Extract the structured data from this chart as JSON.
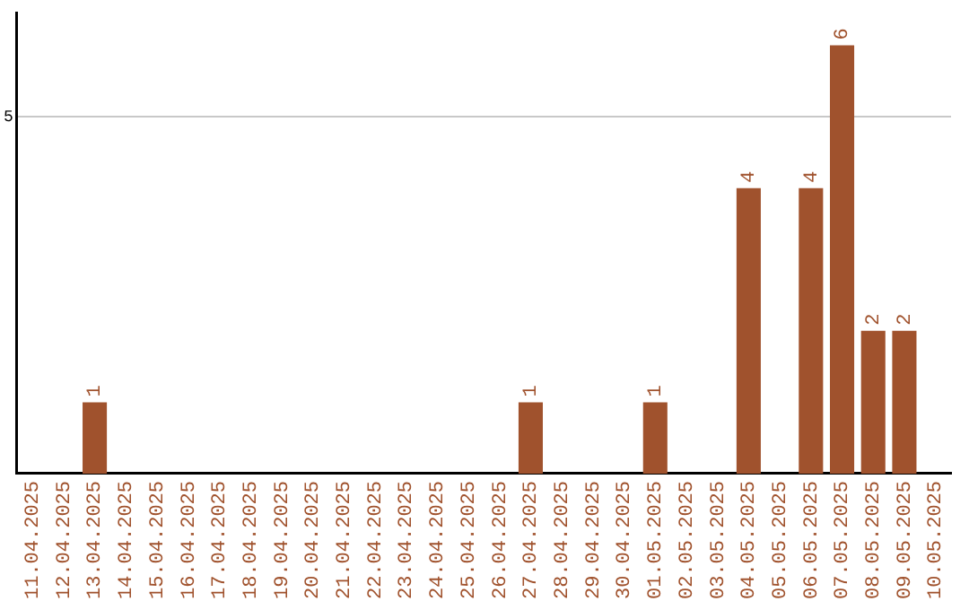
{
  "chart_data": {
    "type": "bar",
    "categories": [
      "11.04.2025",
      "12.04.2025",
      "13.04.2025",
      "14.04.2025",
      "15.04.2025",
      "16.04.2025",
      "17.04.2025",
      "18.04.2025",
      "19.04.2025",
      "20.04.2025",
      "21.04.2025",
      "22.04.2025",
      "23.04.2025",
      "24.04.2025",
      "25.04.2025",
      "26.04.2025",
      "27.04.2025",
      "28.04.2025",
      "29.04.2025",
      "30.04.2025",
      "01.05.2025",
      "02.05.2025",
      "03.05.2025",
      "04.05.2025",
      "05.05.2025",
      "06.05.2025",
      "07.05.2025",
      "08.05.2025",
      "09.05.2025",
      "10.05.2025"
    ],
    "values": [
      0,
      0,
      1,
      0,
      0,
      0,
      0,
      0,
      0,
      0,
      0,
      0,
      0,
      0,
      0,
      0,
      1,
      0,
      0,
      0,
      1,
      0,
      0,
      4,
      0,
      4,
      6,
      2,
      2,
      0
    ],
    "value_labels": [
      null,
      null,
      "1",
      null,
      null,
      null,
      null,
      null,
      null,
      null,
      null,
      null,
      null,
      null,
      null,
      null,
      "1",
      null,
      null,
      null,
      "1",
      null,
      null,
      "4",
      null,
      "4",
      "6",
      "2",
      "2",
      null
    ],
    "color": "#a0522d",
    "ylim": [
      0,
      6.45
    ],
    "yticks": [
      5
    ],
    "grid": "y",
    "legend": false
  }
}
